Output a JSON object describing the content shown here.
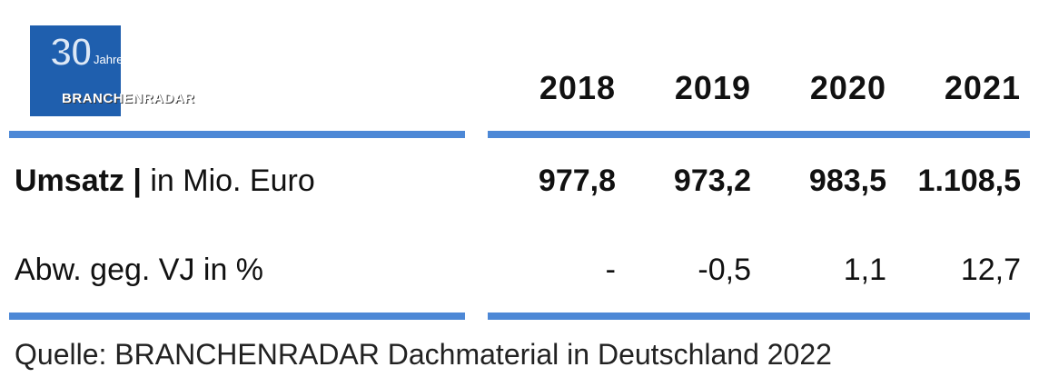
{
  "logo": {
    "number": "30",
    "tagline": "Jahre",
    "brand": "BRANCHENRADAR"
  },
  "table": {
    "columns": [
      "2018",
      "2019",
      "2020",
      "2021"
    ],
    "rows": [
      {
        "label_bold": "Umsatz |",
        "label": "in Mio. Euro",
        "cells": [
          "977,8",
          "973,2",
          "983,5",
          "1.108,5"
        ]
      },
      {
        "label": "Abw. geg. VJ in %",
        "cells": [
          "-",
          "-0,5",
          "1,1",
          "12,7"
        ]
      }
    ]
  },
  "source": "Quelle: BRANCHENRADAR Dachmaterial in Deutschland 2022"
}
